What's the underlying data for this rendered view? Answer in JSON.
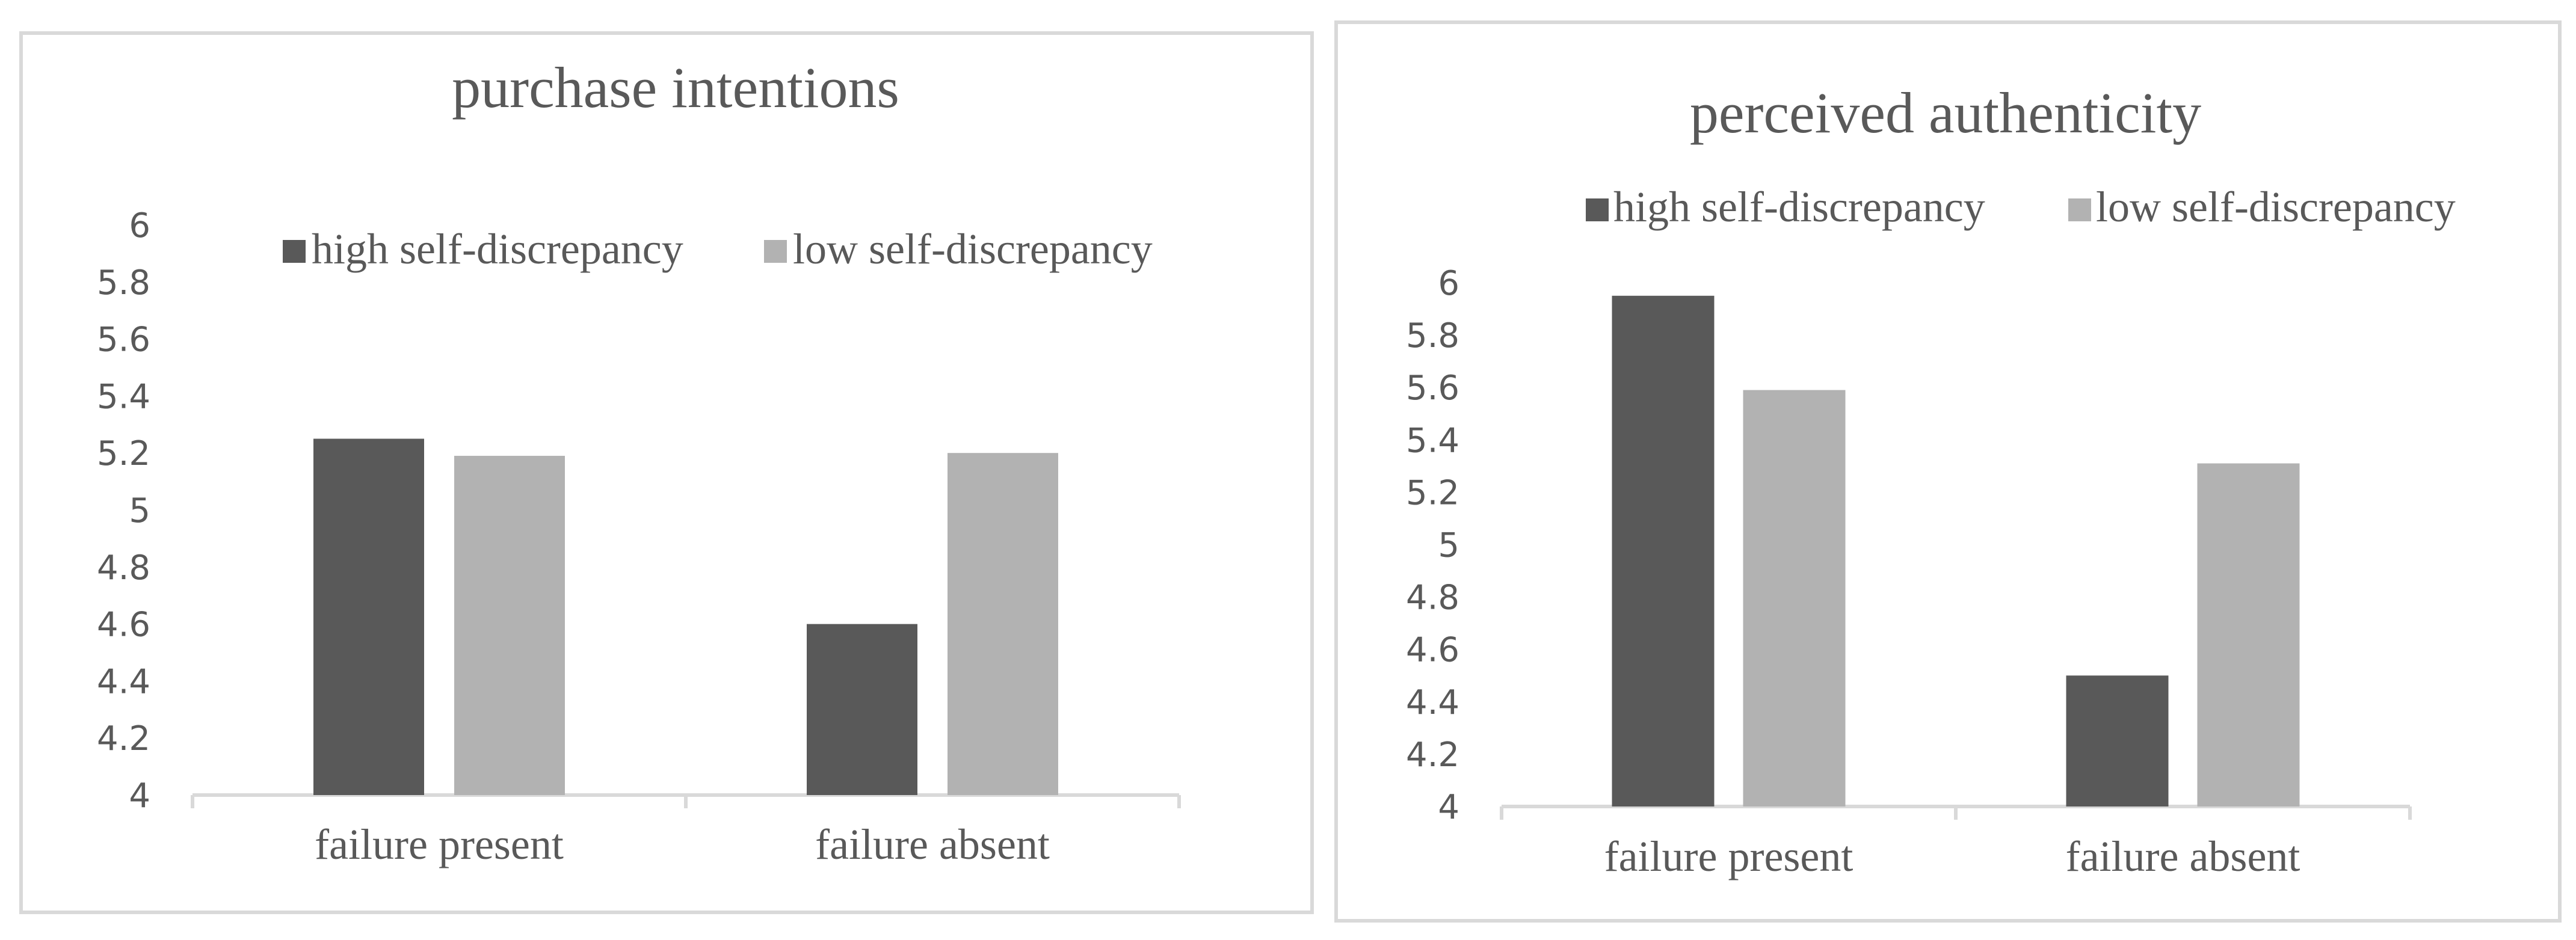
{
  "chart_data": [
    {
      "type": "bar",
      "title": "purchase intentions",
      "categories": [
        "failure present",
        "failure absent"
      ],
      "series": [
        {
          "name": "high self-discrepancy",
          "values": [
            5.25,
            4.6
          ],
          "color": "#595959"
        },
        {
          "name": "low self-discrepancy",
          "values": [
            5.19,
            5.2
          ],
          "color": "#b2b2b2"
        }
      ],
      "ylim": [
        4,
        6
      ],
      "yticks": [
        "4",
        "4.2",
        "4.4",
        "4.6",
        "4.8",
        "5",
        "5.2",
        "5.4",
        "5.6",
        "5.8",
        "6"
      ],
      "grid": false,
      "legend": "top"
    },
    {
      "type": "bar",
      "title": "perceived authenticity",
      "categories": [
        "failure present",
        "failure absent"
      ],
      "series": [
        {
          "name": "high self-discrepancy",
          "values": [
            5.95,
            4.5
          ],
          "color": "#595959"
        },
        {
          "name": "low self-discrepancy",
          "values": [
            5.59,
            5.31
          ],
          "color": "#b2b2b2"
        }
      ],
      "ylim": [
        4,
        6
      ],
      "yticks": [
        "4",
        "4.2",
        "4.4",
        "4.6",
        "4.8",
        "5",
        "5.2",
        "5.4",
        "5.6",
        "5.8",
        "6"
      ],
      "grid": false,
      "legend": "top"
    }
  ]
}
